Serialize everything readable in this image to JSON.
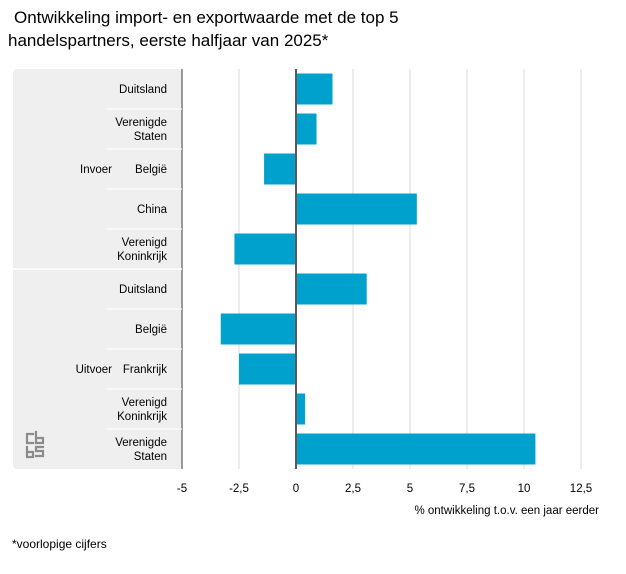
{
  "title": {
    "line1": "Ontwikkeling import- en exportwaarde met de top 5",
    "line2": "handelspartners, eerste halfjaar van 2025*"
  },
  "footnote": "*voorlopige cijfers",
  "logo_icon": "cbs-logo-icon",
  "colors": {
    "bar": "#00a1cd",
    "panel": "#efefef",
    "grid": "#d9d9d9",
    "zero_line": "#5a5a5a",
    "separator": "#ffffff",
    "text": "#000000"
  },
  "chart_data": {
    "type": "bar",
    "orientation": "horizontal",
    "title": "Ontwikkeling import- en exportwaarde met de top 5 handelspartners, eerste halfjaar van 2025*",
    "xlabel": "% ontwikkeling t.o.v. een jaar eerder",
    "ylabel": "",
    "xlim": [
      -5,
      12.5
    ],
    "xticks": [
      -5,
      -2.5,
      0,
      2.5,
      5,
      7.5,
      10,
      12.5
    ],
    "xtick_labels": [
      "-5",
      "-2,5",
      "0",
      "2,5",
      "5",
      "7,5",
      "10",
      "12,5"
    ],
    "grid": true,
    "groups": [
      {
        "name": "Invoer",
        "categories": [
          {
            "label": [
              "Duitsland"
            ],
            "value": 1.6
          },
          {
            "label": [
              "Verenigde",
              "Staten"
            ],
            "value": 0.9
          },
          {
            "label": [
              "België"
            ],
            "value": -1.4
          },
          {
            "label": [
              "China"
            ],
            "value": 5.3
          },
          {
            "label": [
              "Verenigd",
              "Koninkrijk"
            ],
            "value": -2.7
          }
        ]
      },
      {
        "name": "Uitvoer",
        "categories": [
          {
            "label": [
              "Duitsland"
            ],
            "value": 3.1
          },
          {
            "label": [
              "België"
            ],
            "value": -3.3
          },
          {
            "label": [
              "Frankrijk"
            ],
            "value": -2.5
          },
          {
            "label": [
              "Verenigd",
              "Koninkrijk"
            ],
            "value": 0.4
          },
          {
            "label": [
              "Verenigde",
              "Staten"
            ],
            "value": 10.5
          }
        ]
      }
    ]
  }
}
